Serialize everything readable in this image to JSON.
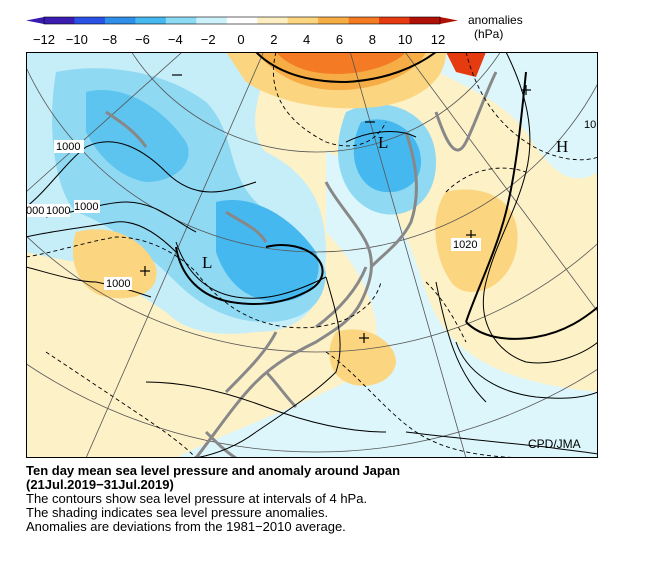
{
  "colorbar": {
    "ticks": [
      "−12",
      "−10",
      "−8",
      "−6",
      "−4",
      "−2",
      "0",
      "2",
      "4",
      "6",
      "8",
      "10",
      "12"
    ],
    "label": "anomalies",
    "unit": "(hPa)",
    "colors": [
      "#3a1cb0",
      "#2a52e6",
      "#2f8ee8",
      "#45b8f0",
      "#8ddaf5",
      "#ccf2fb",
      "#ffffff",
      "#fbeec0",
      "#fbd57f",
      "#f7ad45",
      "#f47b24",
      "#e63a10",
      "#b01006"
    ]
  },
  "map": {
    "contour_labels": [
      "1000",
      "000",
      "1000",
      "1000",
      "1000",
      "1020",
      "10"
    ],
    "pressure_centers": [
      "L",
      "L",
      "H"
    ],
    "anomaly_signs": [
      "−",
      "−",
      "+",
      "+",
      "+"
    ],
    "credit": "CPD/JMA"
  },
  "caption": {
    "title_line1": "Ten day mean sea level pressure and anomaly around Japan",
    "title_line2": "(21Jul.2019−31Jul.2019)",
    "line1": "The contours show sea level pressure at intervals of 4 hPa.",
    "line2": "The shading indicates sea level pressure anomalies.",
    "line3": "Anomalies are deviations from the 1981−2010 average."
  }
}
